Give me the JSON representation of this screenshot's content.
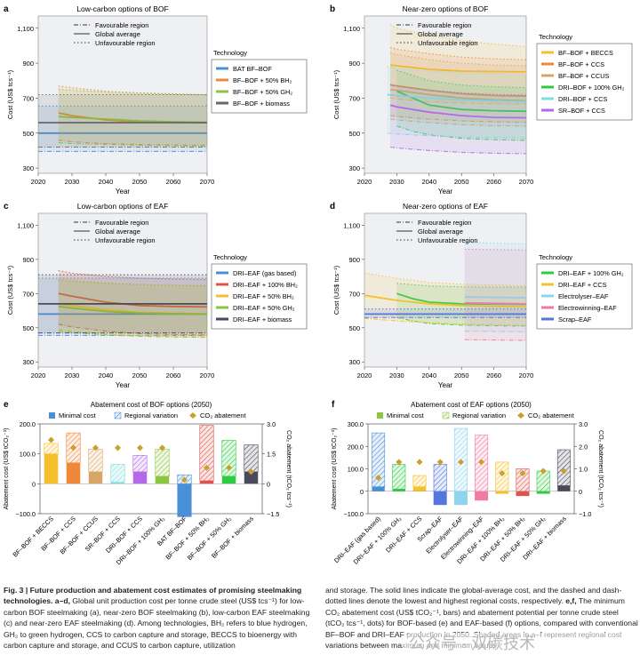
{
  "chart_data": [
    {
      "id": "a",
      "panel_label": "a",
      "title": "Low-carbon options of BOF",
      "type": "line",
      "ylabel": "Cost (US$ tcs⁻¹)",
      "xlabel": "Year",
      "xlim": [
        2020,
        2070
      ],
      "ylim": [
        270,
        1170
      ],
      "xticks": [
        2020,
        2030,
        2040,
        2050,
        2060,
        2070
      ],
      "yticks": [
        300,
        500,
        700,
        900,
        1100
      ],
      "ytick_labels": [
        "300",
        "500",
        "700",
        "900",
        "1,100"
      ],
      "top_legend": [
        "Favourable region",
        "Global average",
        "Unfavourable region"
      ],
      "legend_title": "Technology",
      "series": [
        {
          "name": "BAT BF–BOF",
          "color": "#4a90d9",
          "x": [
            2020,
            2070
          ],
          "avg": [
            500,
            500
          ],
          "low": [
            395,
            395
          ],
          "high": [
            655,
            655
          ]
        },
        {
          "name": "BF–BOF + 50% BH₂",
          "color": "#f0883a",
          "x": [
            2026,
            2030,
            2040,
            2050,
            2060,
            2070
          ],
          "avg": [
            615,
            600,
            575,
            565,
            562,
            560
          ],
          "low": [
            460,
            450,
            440,
            435,
            432,
            430
          ],
          "high": [
            770,
            760,
            740,
            730,
            725,
            720
          ]
        },
        {
          "name": "BF–BOF + 50% GH₂",
          "color": "#8cc63f",
          "x": [
            2026,
            2030,
            2040,
            2050,
            2060,
            2070
          ],
          "avg": [
            595,
            590,
            580,
            570,
            565,
            562
          ],
          "low": [
            445,
            440,
            435,
            430,
            428,
            426
          ],
          "high": [
            750,
            745,
            735,
            728,
            722,
            718
          ]
        },
        {
          "name": "BF–BOF + biomass",
          "color": "#666666",
          "x": [
            2020,
            2070
          ],
          "avg": [
            560,
            560
          ],
          "low": [
            420,
            420
          ],
          "high": [
            720,
            720
          ]
        }
      ]
    },
    {
      "id": "b",
      "panel_label": "b",
      "title": "Near-zero options of BOF",
      "type": "line",
      "ylabel": "Cost (US$ tcs⁻¹)",
      "xlabel": "Year",
      "xlim": [
        2020,
        2070
      ],
      "ylim": [
        270,
        1170
      ],
      "xticks": [
        2020,
        2030,
        2040,
        2050,
        2060,
        2070
      ],
      "yticks": [
        300,
        500,
        700,
        900,
        1100
      ],
      "ytick_labels": [
        "300",
        "500",
        "700",
        "900",
        "1,100"
      ],
      "top_legend": [
        "Favourable region",
        "Global average",
        "Unfavourable region"
      ],
      "legend_title": "Technology",
      "series": [
        {
          "name": "BF–BOF + BECCS",
          "color": "#f6c02c",
          "x": [
            2028,
            2030,
            2040,
            2050,
            2060,
            2070
          ],
          "avg": [
            890,
            885,
            865,
            855,
            852,
            850
          ],
          "low": [
            700,
            695,
            680,
            672,
            668,
            665
          ],
          "high": [
            1120,
            1100,
            1060,
            1030,
            1010,
            995
          ]
        },
        {
          "name": "BF–BOF + CCS",
          "color": "#f0883a",
          "x": [
            2028,
            2030,
            2040,
            2050,
            2060,
            2070
          ],
          "avg": [
            775,
            770,
            745,
            725,
            715,
            712
          ],
          "low": [
            600,
            595,
            580,
            570,
            565,
            562
          ],
          "high": [
            990,
            980,
            955,
            935,
            925,
            920
          ]
        },
        {
          "name": "BF–BOF + CCUS",
          "color": "#d9a566",
          "x": [
            2028,
            2030,
            2040,
            2050,
            2060,
            2070
          ],
          "avg": [
            750,
            745,
            720,
            700,
            690,
            685
          ],
          "low": [
            580,
            575,
            560,
            548,
            542,
            540
          ],
          "high": [
            960,
            950,
            920,
            900,
            890,
            885
          ]
        },
        {
          "name": "DRI–BOF + 100% GH₂",
          "color": "#2ecc40",
          "x": [
            2030,
            2035,
            2040,
            2050,
            2060,
            2070
          ],
          "avg": [
            740,
            700,
            660,
            635,
            628,
            625
          ],
          "low": [
            540,
            510,
            490,
            470,
            462,
            458
          ],
          "high": [
            860,
            830,
            800,
            775,
            765,
            760
          ]
        },
        {
          "name": "DRI–BOF + CCS",
          "color": "#7fdede",
          "x": [
            2027,
            2030,
            2040,
            2050,
            2060,
            2070
          ],
          "avg": [
            720,
            715,
            700,
            690,
            685,
            680
          ],
          "low": [
            500,
            495,
            485,
            478,
            475,
            472
          ],
          "high": [
            880,
            870,
            855,
            845,
            840,
            835
          ]
        },
        {
          "name": "SR–BOF + CCS",
          "color": "#b469e8",
          "x": [
            2028,
            2030,
            2040,
            2050,
            2060,
            2070
          ],
          "avg": [
            660,
            650,
            620,
            600,
            590,
            588
          ],
          "low": [
            420,
            415,
            400,
            390,
            385,
            382
          ],
          "high": [
            780,
            770,
            745,
            730,
            722,
            718
          ]
        }
      ]
    },
    {
      "id": "c",
      "panel_label": "c",
      "title": "Low-carbon options of EAF",
      "type": "line",
      "ylabel": "Cost (US$ tcs⁻¹)",
      "xlabel": "Year",
      "xlim": [
        2020,
        2070
      ],
      "ylim": [
        270,
        1170
      ],
      "xticks": [
        2020,
        2030,
        2040,
        2050,
        2060,
        2070
      ],
      "yticks": [
        300,
        500,
        700,
        900,
        1100
      ],
      "ytick_labels": [
        "300",
        "500",
        "700",
        "900",
        "1,100"
      ],
      "top_legend": [
        "Favourable region",
        "Global average",
        "Unfavourable region"
      ],
      "legend_title": "Technology",
      "series": [
        {
          "name": "DRI–EAF (gas based)",
          "color": "#4a90d9",
          "x": [
            2020,
            2070
          ],
          "avg": [
            580,
            580
          ],
          "low": [
            455,
            455
          ],
          "high": [
            790,
            790
          ]
        },
        {
          "name": "DRI–EAF + 100% BH₂",
          "color": "#e0524c",
          "x": [
            2026,
            2030,
            2040,
            2050,
            2060,
            2070
          ],
          "avg": [
            700,
            685,
            650,
            630,
            625,
            622
          ],
          "low": [
            520,
            505,
            480,
            465,
            460,
            458
          ],
          "high": [
            835,
            820,
            800,
            790,
            785,
            782
          ]
        },
        {
          "name": "DRI–EAF + 50% BH₂",
          "color": "#f6c02c",
          "x": [
            2026,
            2030,
            2040,
            2050,
            2060,
            2070
          ],
          "avg": [
            640,
            630,
            605,
            590,
            585,
            582
          ],
          "low": [
            490,
            480,
            462,
            452,
            448,
            446
          ],
          "high": [
            790,
            780,
            765,
            755,
            750,
            748
          ]
        },
        {
          "name": "DRI–EAF + 50% GH₂",
          "color": "#8cc63f",
          "x": [
            2026,
            2030,
            2040,
            2050,
            2060,
            2070
          ],
          "avg": [
            625,
            615,
            595,
            585,
            582,
            580
          ],
          "low": [
            480,
            472,
            458,
            450,
            446,
            444
          ],
          "high": [
            780,
            772,
            760,
            752,
            748,
            746
          ]
        },
        {
          "name": "DRI–EAF + biomass",
          "color": "#4a4a5a",
          "x": [
            2020,
            2070
          ],
          "avg": [
            640,
            640
          ],
          "low": [
            470,
            470
          ],
          "high": [
            810,
            810
          ]
        }
      ]
    },
    {
      "id": "d",
      "panel_label": "d",
      "title": "Near-zero options of EAF",
      "type": "line",
      "ylabel": "Cost (US$ tcs⁻¹)",
      "xlabel": "Year",
      "xlim": [
        2020,
        2070
      ],
      "ylim": [
        270,
        1170
      ],
      "xticks": [
        2020,
        2030,
        2040,
        2050,
        2060,
        2070
      ],
      "yticks": [
        300,
        500,
        700,
        900,
        1100
      ],
      "ytick_labels": [
        "300",
        "500",
        "700",
        "900",
        "1,100"
      ],
      "top_legend": [
        "Favourable region",
        "Global average",
        "Unfavourable region"
      ],
      "legend_title": "Technology",
      "series": [
        {
          "name": "DRI–EAF + 100% GH₂",
          "color": "#2ecc40",
          "x": [
            2030,
            2035,
            2040,
            2050,
            2060,
            2070
          ],
          "avg": [
            700,
            670,
            650,
            640,
            638,
            636
          ],
          "low": [
            560,
            540,
            525,
            515,
            512,
            510
          ],
          "high": [
            760,
            752,
            745,
            740,
            738,
            736
          ]
        },
        {
          "name": "DRI–EAF + CCS",
          "color": "#f6c02c",
          "x": [
            2020,
            2030,
            2040,
            2050,
            2060,
            2070
          ],
          "avg": [
            690,
            660,
            640,
            630,
            625,
            622
          ],
          "low": [
            555,
            540,
            530,
            522,
            518,
            515
          ],
          "high": [
            820,
            790,
            765,
            755,
            750,
            745
          ]
        },
        {
          "name": "Electrolyser–EAF",
          "color": "#8fd4ee",
          "x": [
            2051,
            2060,
            2070
          ],
          "avg": [
            680,
            678,
            676
          ],
          "low": [
            480,
            478,
            476
          ],
          "high": [
            1000,
            995,
            990
          ]
        },
        {
          "name": "Electrowinning–EAF",
          "color": "#f07aa4",
          "x": [
            2051,
            2060,
            2070
          ],
          "avg": [
            645,
            643,
            640
          ],
          "low": [
            430,
            428,
            426
          ],
          "high": [
            960,
            958,
            955
          ]
        },
        {
          "name": "Scrap–EAF",
          "color": "#5577dd",
          "x": [
            2020,
            2070
          ],
          "avg": [
            580,
            580
          ],
          "low": [
            560,
            560
          ],
          "high": [
            610,
            610
          ]
        }
      ]
    },
    {
      "id": "e",
      "panel_label": "e",
      "title": "Abatement cost of BOF options (2050)",
      "type": "bar",
      "ylabel": "Abatement cost (US$ tCO₂⁻¹)",
      "y2label": "CO₂ abatement (tCO₂ tcs⁻¹)",
      "ylim": [
        -100,
        200
      ],
      "yticks": [
        -100,
        0,
        100,
        200
      ],
      "ytick_labels": [
        "−100.0",
        "0",
        "100.0",
        "200.0"
      ],
      "y2lim": [
        -1.5,
        3.0
      ],
      "y2ticks": [
        -1.5,
        0,
        1.5,
        3.0
      ],
      "y2tick_labels": [
        "−1.5",
        "0",
        "1.5",
        "3.0"
      ],
      "legend": [
        "Minimal cost",
        "Regional variation",
        "CO₂ abatement"
      ],
      "categories": [
        "BF–BOF + BECCS",
        "BF–BOF + CCS",
        "BF–BOF + CCUS",
        "SR–BOF + CCS",
        "DRI–BOF + CCS",
        "DRI–BOF + 100% GH₂",
        "BAT BF–BOF",
        "BF–BOF + 50% BH₂",
        "BF–BOF + 50% GH₂",
        "BF–BOF + biomass"
      ],
      "colors": [
        "#f6c02c",
        "#f0883a",
        "#d9a566",
        "#7fdede",
        "#b469e8",
        "#8cc63f",
        "#4a90d9",
        "#e0524c",
        "#2ecc40",
        "#4a4a5a"
      ],
      "min_cost": [
        100,
        70,
        40,
        5,
        40,
        25,
        -110,
        10,
        25,
        40
      ],
      "max_cost": [
        135,
        170,
        115,
        65,
        95,
        115,
        30,
        195,
        145,
        130
      ],
      "co2_abatement": [
        2.2,
        1.8,
        1.8,
        1.8,
        1.8,
        1.8,
        0.2,
        0.8,
        0.8,
        0.6
      ]
    },
    {
      "id": "f",
      "panel_label": "f",
      "title": "Abatement cost of EAF options (2050)",
      "type": "bar",
      "ylabel": "Abatement cost (US$ tCO₂⁻¹)",
      "y2label": "CO₂ abatement (tCO₂ tcs⁻¹)",
      "ylim": [
        -100,
        300
      ],
      "yticks": [
        -100,
        0,
        100,
        200,
        300
      ],
      "ytick_labels": [
        "−100.0",
        "0",
        "100.0",
        "200.0",
        "300.0"
      ],
      "y2lim": [
        -1.0,
        3.0
      ],
      "y2ticks": [
        -1.0,
        0,
        1.0,
        2.0,
        3.0
      ],
      "y2tick_labels": [
        "−1.0",
        "0",
        "1.0",
        "2.0",
        "3.0"
      ],
      "legend": [
        "Minimal cost",
        "Regional variation",
        "CO₂ abatement"
      ],
      "categories": [
        "DRI–EAF (gas based)",
        "DRI–EAF + 100% GH₂",
        "DRI–EAF + CCS",
        "Scrap–EAF",
        "Electrolyser–EAF",
        "Electrowinning–EAF",
        "DRI–EAF + 100% BH₂",
        "DRI–EAF + 50% BH₂",
        "DRI–EAF + 50% GH₂",
        "DRI–EAF + biomass"
      ],
      "colors": [
        "#4a90d9",
        "#2ecc40",
        "#f6c02c",
        "#5577dd",
        "#8fd4ee",
        "#f07aa4",
        "#f6c02c",
        "#e0524c",
        "#2ecc40",
        "#4a4a5a"
      ],
      "min_cost": [
        20,
        10,
        20,
        -60,
        -60,
        -40,
        -10,
        -20,
        -10,
        25
      ],
      "max_cost": [
        260,
        120,
        70,
        120,
        280,
        250,
        130,
        100,
        90,
        185
      ],
      "co2_abatement": [
        0.6,
        1.3,
        1.3,
        1.3,
        1.3,
        1.3,
        0.8,
        0.8,
        0.9,
        0.9
      ]
    }
  ],
  "caption": {
    "heading": "Fig. 3 | Future production and abatement cost estimates of promising steelmaking technologies. a–d,",
    "col1_rest": "Global unit production cost per tonne crude steel (US$ tcs⁻¹) for low-carbon BOF steelmaking (a), near-zero BOF steelmaking (b), low-carbon EAF steelmaking (c) and near-zero EAF steelmaking (d). Among technologies, BH₂ refers to blue hydrogen, GH₂ to green hydrogen, CCS to carbon capture and storage, BECCS to bioenergy with carbon capture and storage, and CCUS to carbon capture, utilization",
    "col2_intro": "and storage. The solid lines indicate the global-average cost, and the dashed and dash-dotted lines denote the lowest and highest regional costs, respectively.",
    "col2_bold": "e,f,",
    "col2_rest": "The minimum CO₂ abatement cost (US$ tCO₂⁻¹, bars) and abatement potential per tonne crude steel (tCO₂ tcs⁻¹, dots) for BOF-based (e) and EAF-based (f) options, compared with conventional BF–BOF and DRI–EAF production in 2050. Shaded areas in a–f represent regional cost variations between maximum and minimum values."
  },
  "watermark": "公众号 · 双碳技术"
}
